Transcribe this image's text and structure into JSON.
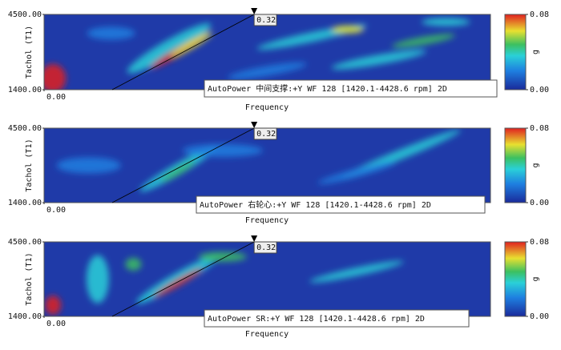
{
  "chart_data": [
    {
      "type": "heatmap",
      "y_label": "Tachol (T1)",
      "x_label": "Frequency",
      "ylim": [
        1400,
        4500
      ],
      "yticks": [
        {
          "value": 1400,
          "label": "1400.00"
        },
        {
          "value": 4500,
          "label": "4500.00"
        }
      ],
      "xlim": [
        0,
        0.68
      ],
      "xticks": [
        {
          "value": 0,
          "label": "0.00"
        }
      ],
      "cursor": {
        "value": 0.32,
        "label": "0.32"
      },
      "legend": "AutoPower 中间支撑:+Y WF 128 [1420.1-4428.6 rpm] 2D",
      "colorbar": {
        "label": "g",
        "lim": [
          0,
          0.08
        ],
        "ticks": [
          {
            "value": 0,
            "label": "0.00"
          },
          {
            "value": 0.08,
            "label": "0.08"
          }
        ]
      }
    },
    {
      "type": "heatmap",
      "y_label": "Tachol (T1)",
      "x_label": "Frequency",
      "ylim": [
        1400,
        4500
      ],
      "yticks": [
        {
          "value": 1400,
          "label": "1400.00"
        },
        {
          "value": 4500,
          "label": "4500.00"
        }
      ],
      "xlim": [
        0,
        0.68
      ],
      "xticks": [
        {
          "value": 0,
          "label": "0.00"
        }
      ],
      "cursor": {
        "value": 0.32,
        "label": "0.32"
      },
      "legend": "AutoPower 右轮心:+Y WF 128 [1420.1-4428.6 rpm] 2D",
      "colorbar": {
        "label": "g",
        "lim": [
          0,
          0.08
        ],
        "ticks": [
          {
            "value": 0,
            "label": "0.00"
          },
          {
            "value": 0.08,
            "label": "0.08"
          }
        ]
      }
    },
    {
      "type": "heatmap",
      "y_label": "Tachol (T1)",
      "x_label": "Frequency",
      "ylim": [
        1400,
        4500
      ],
      "yticks": [
        {
          "value": 1400,
          "label": "1400.00"
        },
        {
          "value": 4500,
          "label": "4500.00"
        }
      ],
      "xlim": [
        0,
        0.68
      ],
      "xticks": [
        {
          "value": 0,
          "label": "0.00"
        }
      ],
      "cursor": {
        "value": 0.32,
        "label": "0.32"
      },
      "legend": "AutoPower SR:+Y WF 128 [1420.1-4428.6 rpm] 2D",
      "colorbar": {
        "label": "g",
        "lim": [
          0,
          0.08
        ],
        "ticks": [
          {
            "value": 0,
            "label": "0.00"
          },
          {
            "value": 0.08,
            "label": "0.08"
          }
        ]
      }
    }
  ]
}
